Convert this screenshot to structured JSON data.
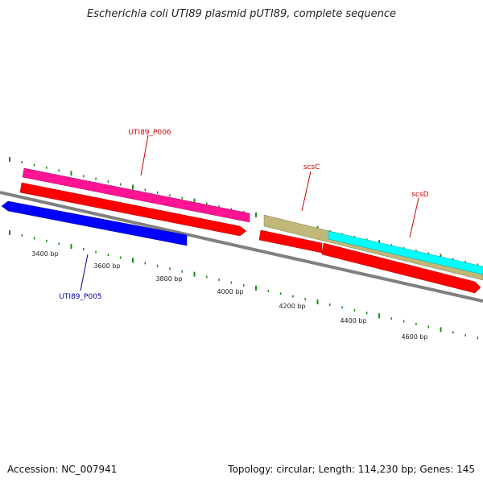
{
  "title": "Escherichia coli UTI89 plasmid pUTI89, complete sequence",
  "footer": {
    "accession": "Accession: NC_007941",
    "summary": "Topology: circular; Length: 114,230 bp; Genes: 145"
  },
  "colors": {
    "backbone": "#808080",
    "tick": "#1a8a1a",
    "pink": "#ff1493",
    "red": "#ff0000",
    "blue": "#0000ff",
    "khaki": "#c0b878",
    "cyan": "#00ffff",
    "label_red": "#cc0000",
    "label_blue": "#000099"
  },
  "scale_labels": [
    "3400 bp",
    "3600 bp",
    "3800 bp",
    "4000 bp",
    "4200 bp",
    "4400 bp",
    "4600 bp"
  ],
  "genes": [
    {
      "name": "UTI89_P006",
      "strand": "+",
      "color": "pink"
    },
    {
      "name": "UTI89_P005",
      "strand": "-",
      "color": "blue"
    },
    {
      "name": "scsC",
      "strand": "+",
      "color": "khaki"
    },
    {
      "name": "scsD",
      "strand": "+",
      "color": "cyan"
    }
  ]
}
